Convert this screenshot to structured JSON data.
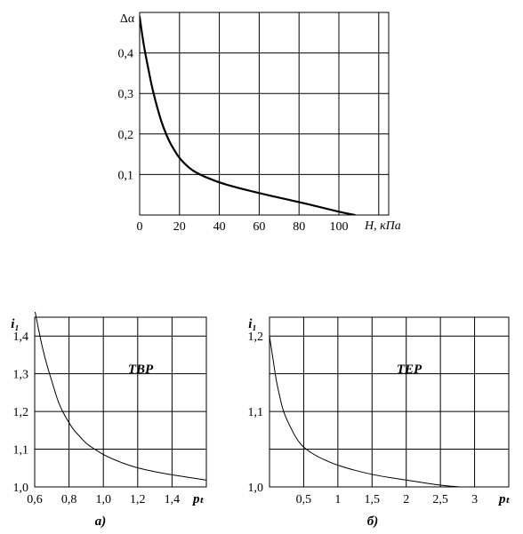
{
  "chart_data": [
    {
      "id": "top",
      "type": "line",
      "ylabel": "Δα",
      "xlabel": "H, кПа",
      "xlim": [
        0,
        125
      ],
      "ylim": [
        0,
        0.5
      ],
      "x_ticks": [
        0,
        20,
        40,
        60,
        80,
        100
      ],
      "x_tick_labels": [
        "0",
        "20",
        "40",
        "60",
        "80",
        "100"
      ],
      "y_ticks": [
        0.1,
        0.2,
        0.3,
        0.4
      ],
      "y_tick_labels": [
        "0,1",
        "0,2",
        "0,3",
        "0,4"
      ],
      "grid": true,
      "series": [
        {
          "x": [
            0,
            2,
            4,
            6,
            8,
            10,
            12,
            15,
            18,
            20,
            25,
            30,
            35,
            40,
            50,
            60,
            70,
            80,
            90,
            100,
            108
          ],
          "y": [
            0.49,
            0.42,
            0.37,
            0.32,
            0.28,
            0.245,
            0.215,
            0.18,
            0.155,
            0.14,
            0.115,
            0.1,
            0.09,
            0.08,
            0.066,
            0.054,
            0.043,
            0.032,
            0.02,
            0.008,
            0.0
          ]
        }
      ]
    },
    {
      "id": "a",
      "type": "line",
      "ylabel": "i₁",
      "xlabel": "pₜ",
      "annotation": "TBP",
      "caption": "а)",
      "xlim": [
        0.6,
        1.6
      ],
      "ylim": [
        1.0,
        1.45
      ],
      "x_ticks": [
        0.6,
        0.8,
        1.0,
        1.2,
        1.4
      ],
      "x_tick_labels": [
        "0,6",
        "0,8",
        "1,0",
        "1,2",
        "1,4"
      ],
      "y_ticks": [
        1.0,
        1.1,
        1.2,
        1.3,
        1.4
      ],
      "y_tick_labels": [
        "1,0",
        "1,1",
        "1,2",
        "1,3",
        "1,4"
      ],
      "grid": true,
      "series": [
        {
          "x": [
            0.6,
            0.63,
            0.66,
            0.7,
            0.74,
            0.78,
            0.82,
            0.86,
            0.9,
            0.95,
            1.0,
            1.1,
            1.2,
            1.3,
            1.4,
            1.5,
            1.6
          ],
          "y": [
            1.47,
            1.4,
            1.34,
            1.28,
            1.22,
            1.185,
            1.155,
            1.135,
            1.115,
            1.1,
            1.085,
            1.065,
            1.05,
            1.04,
            1.032,
            1.025,
            1.018
          ]
        }
      ]
    },
    {
      "id": "b",
      "type": "line",
      "ylabel": "i₁",
      "xlabel": "pₜ",
      "annotation": "TEP",
      "caption": "б)",
      "xlim": [
        0,
        3.5
      ],
      "ylim": [
        1.0,
        1.225
      ],
      "x_ticks": [
        0.5,
        1,
        1.5,
        2,
        2.5,
        3
      ],
      "x_tick_labels": [
        "0,5",
        "1",
        "1,5",
        "2",
        "2,5",
        "3"
      ],
      "y_ticks": [
        1.0,
        1.1,
        1.2
      ],
      "y_tick_labels": [
        "1,0",
        "1,1",
        "1,2"
      ],
      "grid": true,
      "series": [
        {
          "x": [
            0.0,
            0.05,
            0.1,
            0.15,
            0.2,
            0.3,
            0.4,
            0.5,
            0.7,
            1.0,
            1.5,
            2.0,
            2.5,
            2.8
          ],
          "y": [
            1.2,
            1.17,
            1.14,
            1.12,
            1.1,
            1.08,
            1.063,
            1.052,
            1.04,
            1.028,
            1.016,
            1.009,
            1.002,
            1.0
          ]
        }
      ]
    }
  ]
}
